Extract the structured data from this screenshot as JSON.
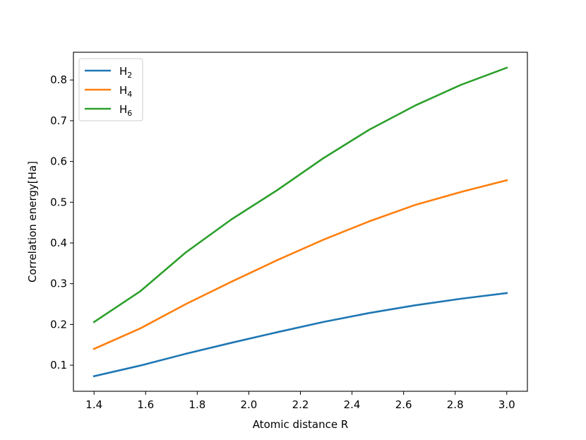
{
  "chart_data": {
    "type": "line",
    "title": "",
    "xlabel": "Atomic distance R",
    "ylabel": "Correlation energy[Ha]",
    "xlim": [
      1.32,
      3.08
    ],
    "ylim": [
      0.036,
      0.868
    ],
    "xticks": [
      1.4,
      1.6,
      1.8,
      2.0,
      2.2,
      2.4,
      2.6,
      2.8,
      3.0
    ],
    "xtick_labels": [
      "1.4",
      "1.6",
      "1.8",
      "2.0",
      "2.2",
      "2.4",
      "2.6",
      "2.8",
      "3.0"
    ],
    "yticks": [
      0.1,
      0.2,
      0.3,
      0.4,
      0.5,
      0.6,
      0.7,
      0.8
    ],
    "ytick_labels": [
      "0.1",
      "0.2",
      "0.3",
      "0.4",
      "0.5",
      "0.6",
      "0.7",
      "0.8"
    ],
    "grid": false,
    "legend_position": "top-left",
    "x": [
      1.4,
      1.578,
      1.756,
      1.933,
      2.111,
      2.289,
      2.467,
      2.644,
      2.822,
      3.0
    ],
    "series": [
      {
        "name": "H",
        "subscript": "2",
        "color": "#1f77b4",
        "values": [
          0.073,
          0.099,
          0.128,
          0.155,
          0.181,
          0.206,
          0.228,
          0.247,
          0.263,
          0.277
        ]
      },
      {
        "name": "H",
        "subscript": "4",
        "color": "#ff7f0e",
        "values": [
          0.14,
          0.19,
          0.25,
          0.305,
          0.358,
          0.408,
          0.453,
          0.493,
          0.525,
          0.554
        ]
      },
      {
        "name": "H",
        "subscript": "6",
        "color": "#2ca02c",
        "values": [
          0.206,
          0.281,
          0.377,
          0.458,
          0.53,
          0.608,
          0.678,
          0.737,
          0.788,
          0.83
        ]
      }
    ]
  }
}
